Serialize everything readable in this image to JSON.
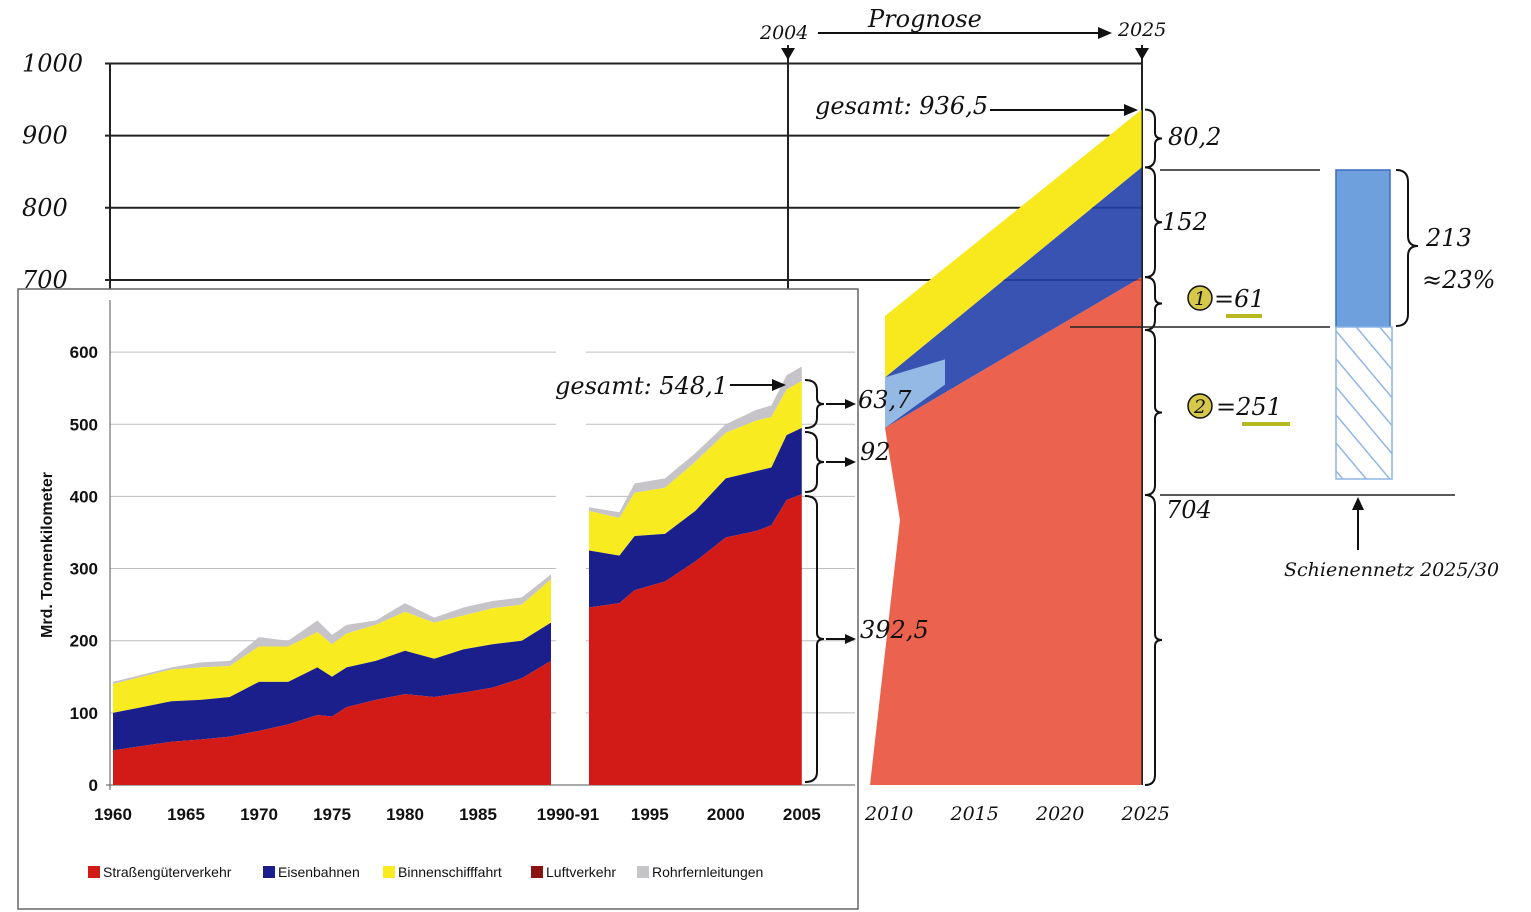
{
  "chart_data": {
    "type": "area",
    "ylabel": "Mrd. Tonnenkilometer",
    "y_ticks_print": [
      "0",
      "100",
      "200",
      "300",
      "400",
      "500",
      "600"
    ],
    "y_ticks_hand": [
      "700",
      "800",
      "900",
      "1000"
    ],
    "x_ticks_print": [
      "1960",
      "1965",
      "1970",
      "1975",
      "1980",
      "1985",
      "1990-91",
      "1995",
      "2000",
      "2005"
    ],
    "x_ticks_hand": [
      "2010",
      "2015",
      "2020",
      "2025"
    ],
    "ylim": [
      0,
      1000
    ],
    "segments": [
      {
        "x": [
          1960,
          1962,
          1964,
          1966,
          1968,
          1970,
          1972,
          1974,
          1975,
          1976,
          1978,
          1980,
          1982,
          1984,
          1986,
          1988,
          1990
        ],
        "road": [
          48,
          54,
          60,
          63,
          67,
          75,
          84,
          97,
          95,
          108,
          118,
          126,
          122,
          128,
          135,
          148,
          172
        ],
        "rail": [
          100,
          108,
          116,
          118,
          122,
          143,
          143,
          163,
          150,
          163,
          172,
          186,
          175,
          188,
          195,
          200,
          225
        ],
        "inland": [
          140,
          150,
          160,
          163,
          165,
          192,
          192,
          212,
          195,
          210,
          222,
          240,
          225,
          235,
          245,
          250,
          285
        ],
        "total": [
          143,
          153,
          163,
          170,
          172,
          205,
          200,
          228,
          208,
          222,
          228,
          252,
          232,
          246,
          255,
          260,
          292
        ]
      },
      {
        "x": [
          1991,
          1993,
          1994,
          1996,
          1998,
          2000,
          2002,
          2003,
          2004,
          2005
        ],
        "road": [
          246,
          252,
          270,
          282,
          310,
          343,
          352,
          360,
          395,
          403
        ],
        "rail": [
          325,
          318,
          345,
          348,
          380,
          425,
          435,
          440,
          485,
          495
        ],
        "inland": [
          380,
          370,
          405,
          412,
          448,
          488,
          505,
          510,
          548,
          560
        ],
        "total": [
          385,
          378,
          418,
          425,
          460,
          500,
          520,
          526,
          568,
          580
        ]
      }
    ],
    "forecast": {
      "x": [
        2010,
        2025
      ],
      "road": [
        495,
        704
      ],
      "rail": [
        565,
        856
      ],
      "inland": [
        650,
        936
      ]
    },
    "legend": [
      {
        "label": "Straßengüterverkehr",
        "color": "#d21a17"
      },
      {
        "label": "Eisenbahnen",
        "color": "#1a1f8c"
      },
      {
        "label": "Binnenschifffahrt",
        "color": "#f8ec20"
      },
      {
        "label": "Luftverkehr",
        "color": "#8a1212"
      },
      {
        "label": "Rohrfernleitungen",
        "color": "#c6c4c8"
      }
    ],
    "annotations": {
      "prognose": "Prognose",
      "year_2004": "2004",
      "year_2025": "2025",
      "gesamt_2025": "gesamt: 936,5",
      "val_802": "80,2",
      "val_152": "152",
      "circle_1": "1",
      "val_61": "=61",
      "circle_2": "2",
      "val_251": "=251",
      "val_704": "704",
      "val_213": "213",
      "val_23pct": "≈23%",
      "schiene": "Schienennetz 2025/30",
      "gesamt_2005": "gesamt: 548,1",
      "val_637": "63,7",
      "val_92": "92",
      "val_3925": "392,5"
    },
    "colors": {
      "road": "#d21a17",
      "rail": "#1a1f8c",
      "inland": "#f8ec20",
      "grey": "#c6c4c8",
      "hand_red": "#e8472f",
      "hand_blue": "#2240a8",
      "hand_lightblue": "#9fc4ea",
      "hand_yellow": "#f8e81e"
    }
  }
}
